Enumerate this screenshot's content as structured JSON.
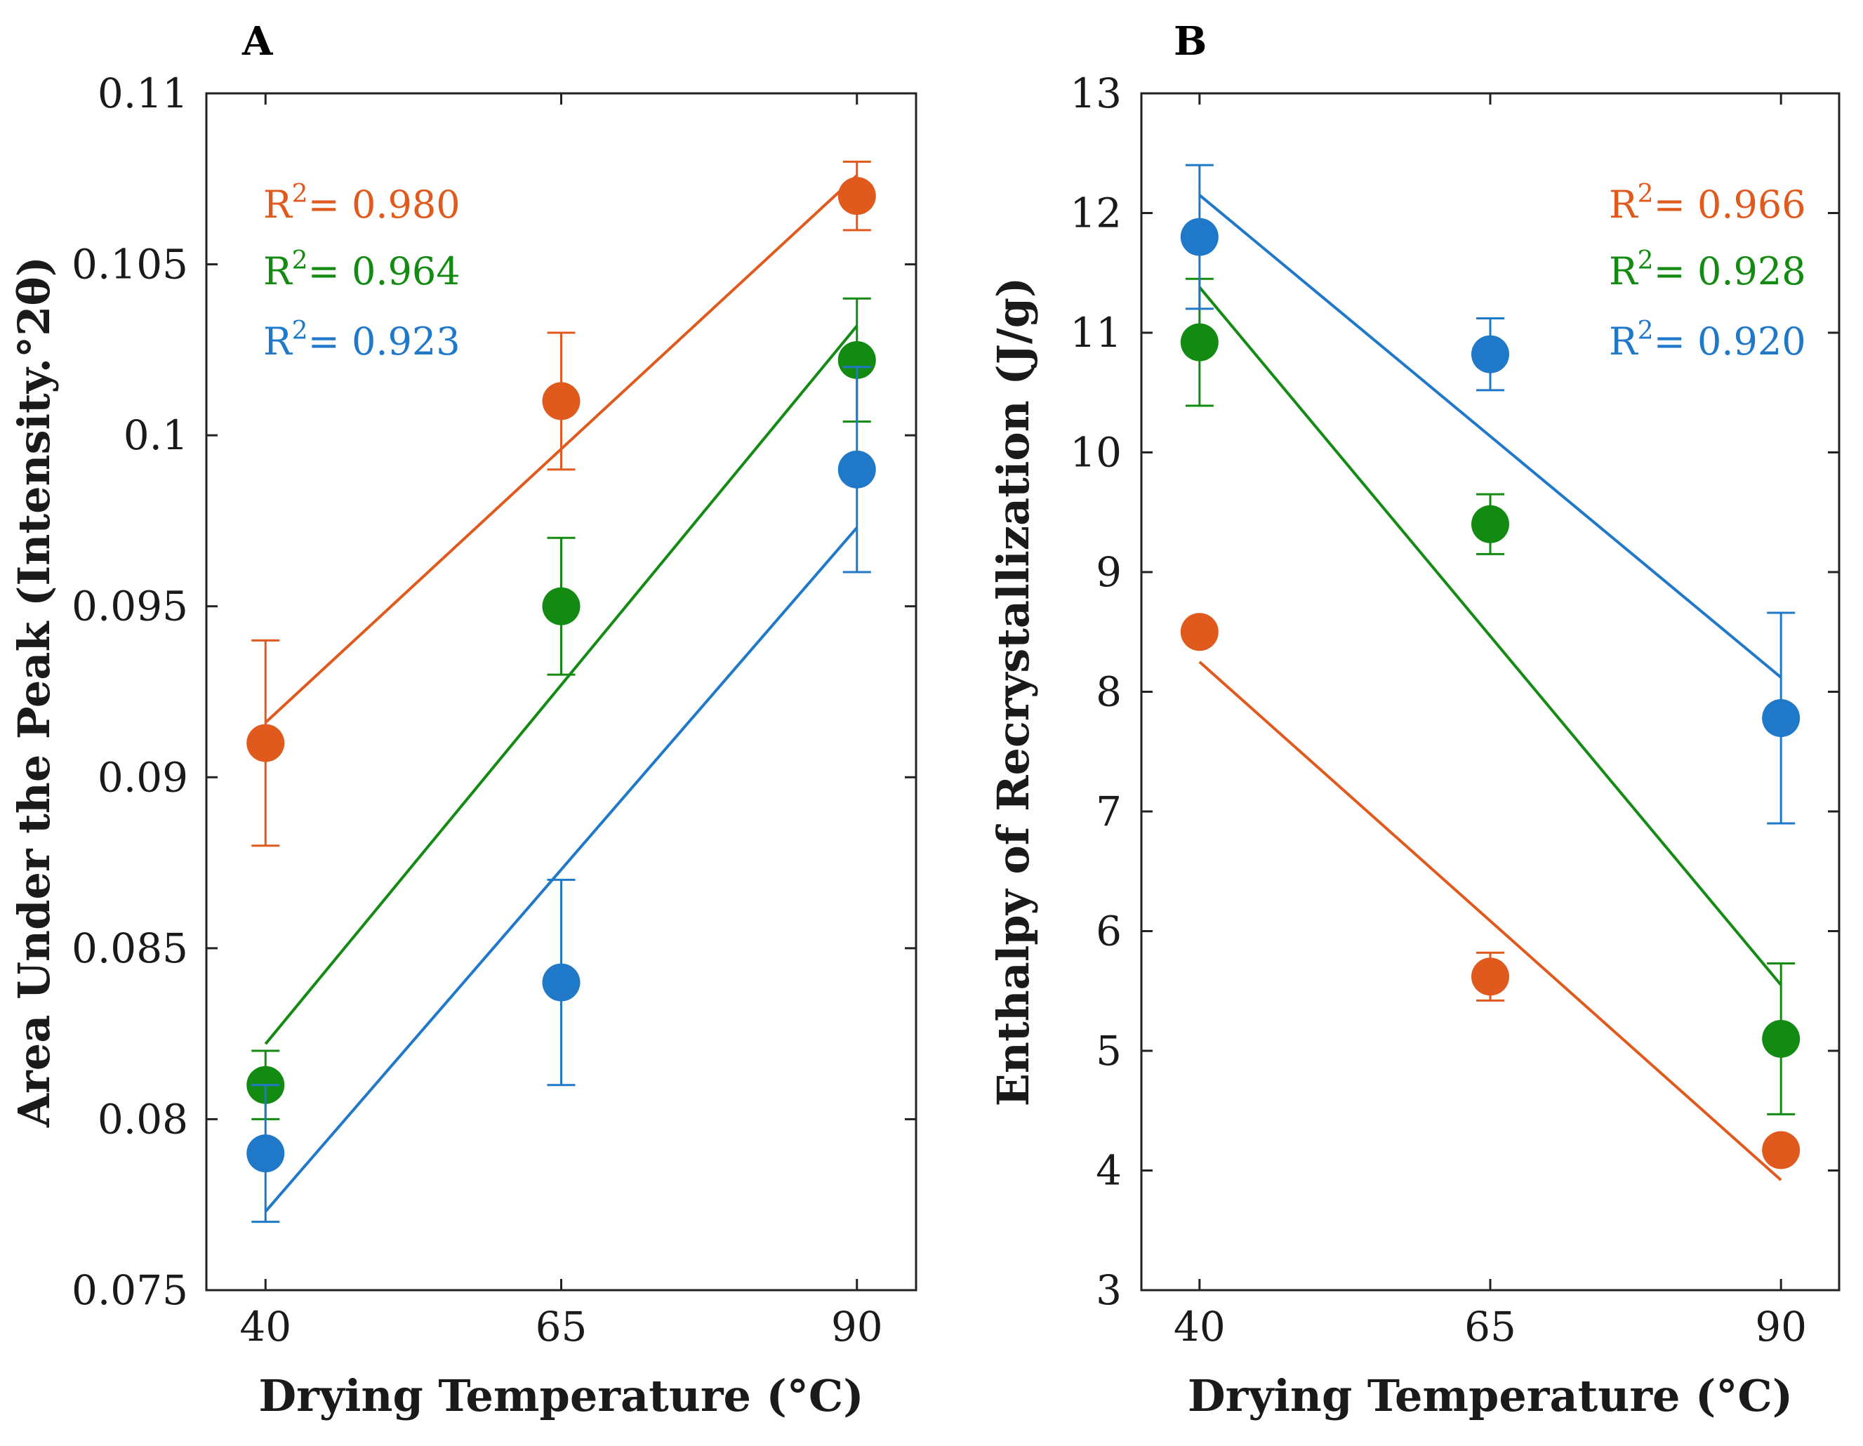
{
  "colors": {
    "orange": "#e05a1e",
    "green": "#138a12",
    "blue": "#1f78c8",
    "axis": "#222222"
  },
  "chart_data": [
    {
      "type": "scatter",
      "panel_label": "A",
      "title": "",
      "xlabel": "Drying Temperature (°C)",
      "ylabel": "Area Under the Peak (Intensity.°2θ)",
      "x": [
        40,
        65,
        90
      ],
      "xlim": [
        35,
        95
      ],
      "ylim": [
        0.075,
        0.11
      ],
      "xticks": [
        40,
        65,
        90
      ],
      "xtick_labels": [
        "40",
        "65",
        "90"
      ],
      "yticks": [
        0.075,
        0.08,
        0.085,
        0.09,
        0.095,
        0.1,
        0.105,
        0.11
      ],
      "ytick_labels": [
        "0.075",
        "0.08",
        "0.085",
        "0.09",
        "0.095",
        "0.1",
        "0.105",
        "0.11"
      ],
      "grid": false,
      "series": [
        {
          "name": "orange",
          "color": "#e05a1e",
          "values": [
            0.091,
            0.101,
            0.107
          ],
          "errors": [
            0.003,
            0.002,
            0.001
          ],
          "fit": [
            0.0916,
            0.1076
          ],
          "r2_prefix": "R",
          "r2_sup": "2",
          "r2_text": "= 0.980"
        },
        {
          "name": "green",
          "color": "#138a12",
          "values": [
            0.081,
            0.095,
            0.1022
          ],
          "errors": [
            0.001,
            0.002,
            0.0018
          ],
          "fit": [
            0.0822,
            0.1032
          ],
          "r2_prefix": "R",
          "r2_sup": "2",
          "r2_text": "= 0.964"
        },
        {
          "name": "blue",
          "color": "#1f78c8",
          "values": [
            0.079,
            0.084,
            0.099
          ],
          "errors": [
            0.002,
            0.003,
            0.003
          ],
          "fit": [
            0.0773,
            0.0973
          ],
          "r2_prefix": "R",
          "r2_sup": "2",
          "r2_text": "= 0.923"
        }
      ]
    },
    {
      "type": "scatter",
      "panel_label": "B",
      "title": "",
      "xlabel": "Drying Temperature (°C)",
      "ylabel": "Enthalpy of Recrystallization (J/g)",
      "x": [
        40,
        65,
        90
      ],
      "xlim": [
        35,
        95
      ],
      "ylim": [
        3,
        13
      ],
      "xticks": [
        40,
        65,
        90
      ],
      "xtick_labels": [
        "40",
        "65",
        "90"
      ],
      "yticks": [
        3,
        4,
        5,
        6,
        7,
        8,
        9,
        10,
        11,
        12,
        13
      ],
      "ytick_labels": [
        "3",
        "4",
        "5",
        "6",
        "7",
        "8",
        "9",
        "10",
        "11",
        "12",
        "13"
      ],
      "grid": false,
      "series": [
        {
          "name": "orange",
          "color": "#e05a1e",
          "values": [
            8.5,
            5.62,
            4.17
          ],
          "errors": [
            0.0,
            0.2,
            0.0
          ],
          "fit": [
            8.25,
            3.92
          ],
          "r2_prefix": "R",
          "r2_sup": "2",
          "r2_text": "= 0.966"
        },
        {
          "name": "green",
          "color": "#138a12",
          "values": [
            10.92,
            9.4,
            5.1
          ],
          "errors": [
            0.53,
            0.25,
            0.63
          ],
          "fit": [
            11.38,
            5.55
          ],
          "r2_prefix": "R",
          "r2_sup": "2",
          "r2_text": "= 0.928"
        },
        {
          "name": "blue",
          "color": "#1f78c8",
          "values": [
            11.8,
            10.82,
            7.78
          ],
          "errors": [
            0.6,
            0.3,
            0.88
          ],
          "fit": [
            12.15,
            8.12
          ],
          "r2_prefix": "R",
          "r2_sup": "2",
          "r2_text": "= 0.920"
        }
      ]
    }
  ]
}
